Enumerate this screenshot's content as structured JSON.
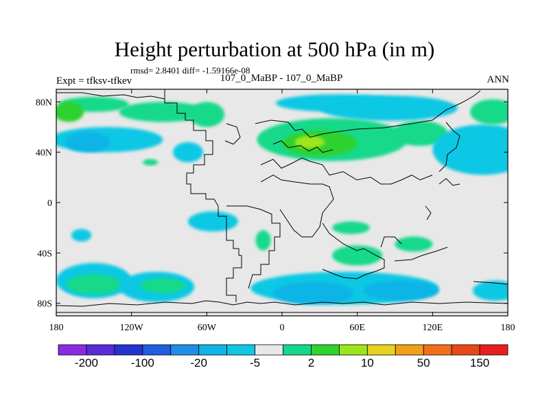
{
  "chart_data": {
    "type": "heatmap",
    "title": "Height perturbation at 500 hPa (in m)",
    "stats_text": "rmsd= 2.8401 diff= -1.59166e-08",
    "expt_label": "Expt = tfksv-tfkev",
    "case_label": "107_0_MaBP - 107_0_MaBP",
    "season_label": "ANN",
    "xlim": [
      -180,
      180
    ],
    "ylim": [
      -90,
      90
    ],
    "x_ticks": [
      {
        "value": -180,
        "label": "180"
      },
      {
        "value": -120,
        "label": "120W"
      },
      {
        "value": -60,
        "label": "60W"
      },
      {
        "value": 0,
        "label": "0"
      },
      {
        "value": 60,
        "label": "60E"
      },
      {
        "value": 120,
        "label": "120E"
      },
      {
        "value": 180,
        "label": "180"
      }
    ],
    "y_ticks": [
      {
        "value": 80,
        "label": "80N"
      },
      {
        "value": 40,
        "label": "40N"
      },
      {
        "value": 0,
        "label": "0"
      },
      {
        "value": -40,
        "label": "40S"
      },
      {
        "value": -80,
        "label": "80S"
      }
    ],
    "colorbar": {
      "colors": [
        "#8a2be2",
        "#5a2bd8",
        "#2432d2",
        "#1e5fe0",
        "#1e8fe6",
        "#10b4e6",
        "#11c8e4",
        "#e8e8e8",
        "#14d98a",
        "#2fd22f",
        "#9be61a",
        "#e6d21e",
        "#f0a018",
        "#f07018",
        "#e84818",
        "#e81e1e"
      ],
      "labels": [
        {
          "text": "-200",
          "after_index": 0
        },
        {
          "text": "-100",
          "after_index": 2
        },
        {
          "text": "-20",
          "after_index": 4
        },
        {
          "text": "-5",
          "after_index": 6
        },
        {
          "text": "2",
          "after_index": 8
        },
        {
          "text": "10",
          "after_index": 10
        },
        {
          "text": "50",
          "after_index": 12
        },
        {
          "text": "150",
          "after_index": 14
        }
      ]
    },
    "anomalies": [
      {
        "lon": -150,
        "lat": 78,
        "rlon": 28,
        "rlat": 6,
        "level": 8
      },
      {
        "lon": -170,
        "lat": 72,
        "rlon": 12,
        "rlat": 8,
        "level": 9
      },
      {
        "lon": -95,
        "lat": 72,
        "rlon": 35,
        "rlat": 8,
        "level": 8
      },
      {
        "lon": -60,
        "lat": 70,
        "rlon": 14,
        "rlat": 10,
        "level": 8
      },
      {
        "lon": -140,
        "lat": 50,
        "rlon": 45,
        "rlat": 10,
        "level": 6
      },
      {
        "lon": -155,
        "lat": 48,
        "rlon": 18,
        "rlat": 8,
        "level": 5
      },
      {
        "lon": -75,
        "lat": 40,
        "rlon": 12,
        "rlat": 8,
        "level": 6
      },
      {
        "lon": -105,
        "lat": 32,
        "rlon": 6,
        "rlat": 2.5,
        "level": 8
      },
      {
        "lon": 45,
        "lat": 79,
        "rlon": 50,
        "rlat": 7,
        "level": 6
      },
      {
        "lon": 85,
        "lat": 75,
        "rlon": 55,
        "rlat": 10,
        "level": 6
      },
      {
        "lon": 40,
        "lat": 50,
        "rlon": 60,
        "rlat": 17,
        "level": 8
      },
      {
        "lon": 30,
        "lat": 47,
        "rlon": 30,
        "rlat": 10,
        "level": 9
      },
      {
        "lon": 22,
        "lat": 48,
        "rlon": 12,
        "rlat": 5,
        "level": 10
      },
      {
        "lon": 110,
        "lat": 55,
        "rlon": 22,
        "rlat": 10,
        "level": 8
      },
      {
        "lon": 160,
        "lat": 42,
        "rlon": 40,
        "rlat": 20,
        "level": 6
      },
      {
        "lon": 168,
        "lat": 72,
        "rlon": 18,
        "rlat": 10,
        "level": 8
      },
      {
        "lon": -55,
        "lat": -15,
        "rlon": 20,
        "rlat": 8,
        "level": 6
      },
      {
        "lon": -160,
        "lat": -26,
        "rlon": 8,
        "rlat": 5,
        "level": 6
      },
      {
        "lon": -15,
        "lat": -30,
        "rlon": 6,
        "rlat": 8,
        "level": 8
      },
      {
        "lon": 55,
        "lat": -20,
        "rlon": 15,
        "rlat": 5,
        "level": 8
      },
      {
        "lon": 60,
        "lat": -42,
        "rlon": 20,
        "rlat": 8,
        "level": 8
      },
      {
        "lon": 105,
        "lat": -33,
        "rlon": 15,
        "rlat": 6,
        "level": 8
      },
      {
        "lon": -150,
        "lat": -62,
        "rlon": 30,
        "rlat": 14,
        "level": 6
      },
      {
        "lon": -150,
        "lat": -65,
        "rlon": 22,
        "rlat": 8,
        "level": 8
      },
      {
        "lon": -100,
        "lat": -67,
        "rlon": 30,
        "rlat": 12,
        "level": 6
      },
      {
        "lon": -95,
        "lat": -66,
        "rlon": 18,
        "rlat": 6,
        "level": 8
      },
      {
        "lon": 50,
        "lat": -68,
        "rlon": 75,
        "rlat": 13,
        "level": 6
      },
      {
        "lon": 25,
        "lat": -72,
        "rlon": 32,
        "rlat": 9,
        "level": 5
      },
      {
        "lon": 95,
        "lat": -70,
        "rlon": 30,
        "rlat": 8,
        "level": 5
      },
      {
        "lon": 170,
        "lat": -70,
        "rlon": 18,
        "rlat": 8,
        "level": 6
      }
    ]
  }
}
